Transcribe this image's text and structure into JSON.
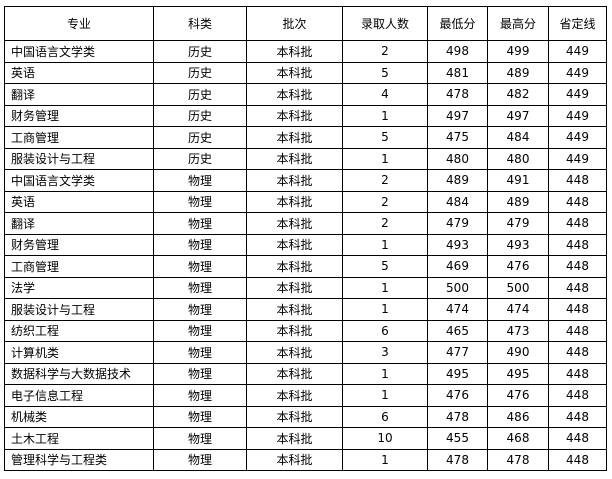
{
  "headers": [
    "专业",
    "科类",
    "批次",
    "录取人数",
    "最低分",
    "最高分",
    "省定线"
  ],
  "rows": [
    [
      "中国语言文学类",
      "历史",
      "本科批",
      "2",
      "498",
      "499",
      "449"
    ],
    [
      "英语",
      "历史",
      "本科批",
      "5",
      "481",
      "489",
      "449"
    ],
    [
      "翻译",
      "历史",
      "本科批",
      "4",
      "478",
      "482",
      "449"
    ],
    [
      "财务管理",
      "历史",
      "本科批",
      "1",
      "497",
      "497",
      "449"
    ],
    [
      "工商管理",
      "历史",
      "本科批",
      "5",
      "475",
      "484",
      "449"
    ],
    [
      "服装设计与工程",
      "历史",
      "本科批",
      "1",
      "480",
      "480",
      "449"
    ],
    [
      "中国语言文学类",
      "物理",
      "本科批",
      "2",
      "489",
      "491",
      "448"
    ],
    [
      "英语",
      "物理",
      "本科批",
      "2",
      "484",
      "489",
      "448"
    ],
    [
      "翻译",
      "物理",
      "本科批",
      "2",
      "479",
      "479",
      "448"
    ],
    [
      "财务管理",
      "物理",
      "本科批",
      "1",
      "493",
      "493",
      "448"
    ],
    [
      "工商管理",
      "物理",
      "本科批",
      "5",
      "469",
      "476",
      "448"
    ],
    [
      "法学",
      "物理",
      "本科批",
      "1",
      "500",
      "500",
      "448"
    ],
    [
      "服装设计与工程",
      "物理",
      "本科批",
      "1",
      "474",
      "474",
      "448"
    ],
    [
      "纺织工程",
      "物理",
      "本科批",
      "6",
      "465",
      "473",
      "448"
    ],
    [
      "计算机类",
      "物理",
      "本科批",
      "3",
      "477",
      "490",
      "448"
    ],
    [
      "数据科学与大数据技术",
      "物理",
      "本科批",
      "1",
      "495",
      "495",
      "448"
    ],
    [
      "电子信息工程",
      "物理",
      "本科批",
      "1",
      "476",
      "476",
      "448"
    ],
    [
      "机械类",
      "物理",
      "本科批",
      "6",
      "478",
      "486",
      "448"
    ],
    [
      "土木工程",
      "物理",
      "本科批",
      "10",
      "455",
      "468",
      "448"
    ],
    [
      "管理科学与工程类",
      "物理",
      "本科批",
      "1",
      "478",
      "478",
      "448"
    ]
  ]
}
